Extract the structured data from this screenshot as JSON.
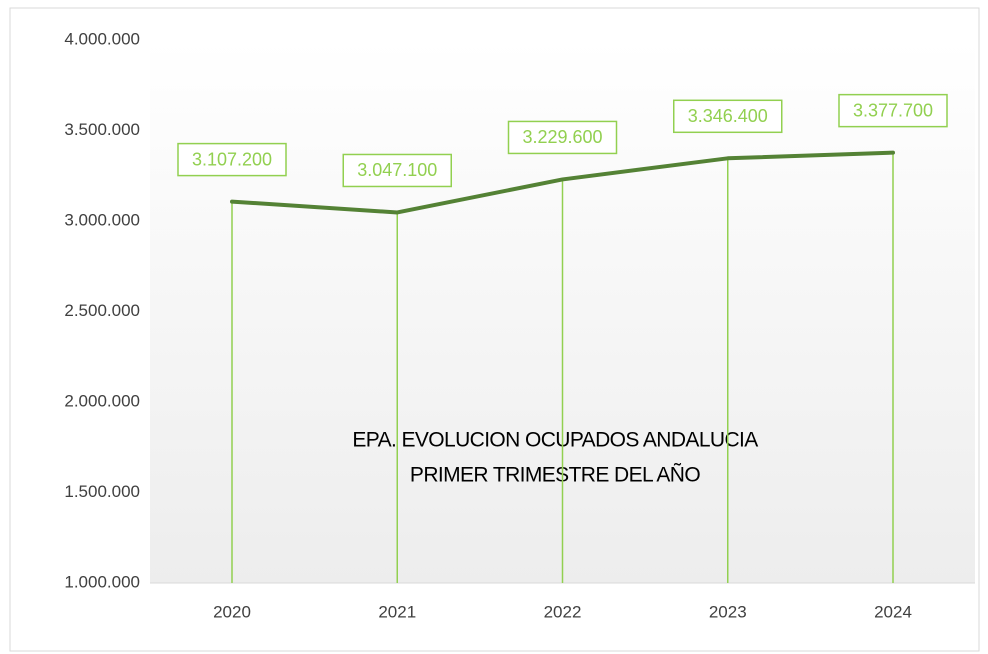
{
  "chart_data": {
    "type": "line",
    "title": "EPA. EVOLUCION OCUPADOS ANDALUCIA",
    "subtitle": "PRIMER TRIMESTRE DEL AÑO",
    "categories": [
      "2020",
      "2021",
      "2022",
      "2023",
      "2024"
    ],
    "series": [
      {
        "name": "Ocupados",
        "color": "#548235",
        "values": [
          3107200,
          3047100,
          3229600,
          3346400,
          3377700
        ],
        "value_labels": [
          "3.107.200",
          "3.047.100",
          "3.229.600",
          "3.346.400",
          "3.377.700"
        ]
      }
    ],
    "drop_line_color": "#92d050",
    "ylim": [
      1000000,
      4000000
    ],
    "yticks": [
      {
        "value": 1000000,
        "label": "1.000.000"
      },
      {
        "value": 1500000,
        "label": "1.500.000"
      },
      {
        "value": 2000000,
        "label": "2.000.000"
      },
      {
        "value": 2500000,
        "label": "2.500.000"
      },
      {
        "value": 3000000,
        "label": "3.000.000"
      },
      {
        "value": 3500000,
        "label": "3.500.000"
      },
      {
        "value": 4000000,
        "label": "4.000.000"
      }
    ],
    "grid": false
  }
}
